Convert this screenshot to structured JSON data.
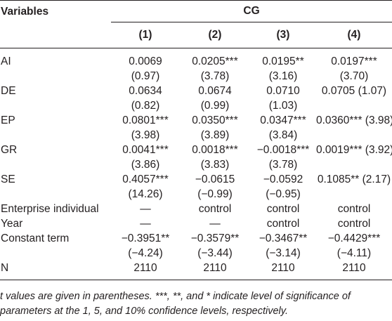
{
  "header": {
    "variables": "Variables",
    "group": "CG",
    "columns": [
      "(1)",
      "(2)",
      "(3)",
      "(4)"
    ]
  },
  "rows": [
    {
      "var": "AI",
      "cells": [
        "0.0069",
        "0.0205***",
        "0.0195**",
        "0.0197***"
      ]
    },
    {
      "var": "",
      "cells": [
        "(0.97)",
        "(3.78)",
        "(3.16)",
        "(3.70)"
      ]
    },
    {
      "var": "DE",
      "cells": [
        "0.0634",
        "0.0674",
        "0.0710",
        "0.0705 (1.07)"
      ]
    },
    {
      "var": "",
      "cells": [
        "(0.82)",
        "(0.99)",
        "(1.03)",
        ""
      ]
    },
    {
      "var": "EP",
      "cells": [
        "0.0801***",
        "0.0350***",
        "0.0347***",
        "0.0360*** (3.98)"
      ]
    },
    {
      "var": "",
      "cells": [
        "(3.98)",
        "(3.89)",
        "(3.84)",
        ""
      ]
    },
    {
      "var": "GR",
      "cells": [
        "0.0041***",
        "0.0018***",
        "−0.0018***",
        "0.0019*** (3.92)"
      ]
    },
    {
      "var": "",
      "cells": [
        "(3.86)",
        "(3.83)",
        "(3.78)",
        ""
      ]
    },
    {
      "var": "SE",
      "cells": [
        "0.4057***",
        "−0.0615",
        "−0.0592",
        "0.1085** (2.17)"
      ]
    },
    {
      "var": "",
      "cells": [
        "(14.26)",
        "(−0.99)",
        "(−0.95)",
        ""
      ]
    },
    {
      "var": "Enterprise individual",
      "cells": [
        "—",
        "control",
        "control",
        "control"
      ]
    },
    {
      "var": "Year",
      "cells": [
        "—",
        "—",
        "control",
        "control"
      ]
    },
    {
      "var": "Constant term",
      "cells": [
        "−0.3951**",
        "−0.3579**",
        "−0.3467**",
        "−0.4429***"
      ]
    },
    {
      "var": "",
      "cells": [
        "(−4.24)",
        "(−3.44)",
        "(−3.14)",
        "(−4.11)"
      ]
    },
    {
      "var": "N",
      "cells": [
        "2110",
        "2110",
        "2110",
        "2110"
      ]
    }
  ],
  "note": "t values are given in parentheses. ***, **, and * indicate level of significance of parameters at the 1, 5, and 10% confidence levels, respectively."
}
